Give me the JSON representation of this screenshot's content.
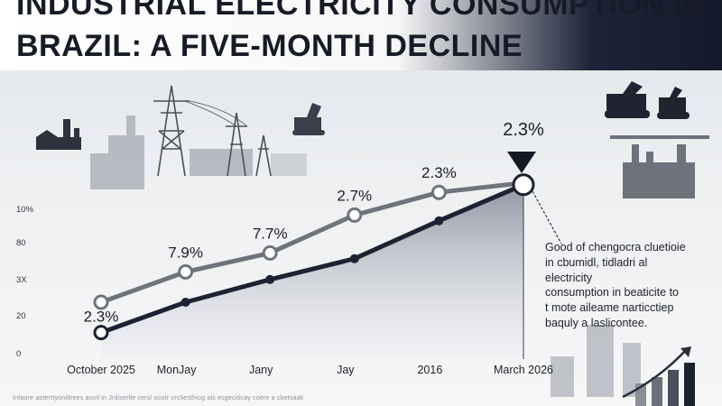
{
  "header": {
    "title_line1": "INDUSTRIAL ELECTRICITY CONSUMPTION IN",
    "title_line2": "BRAZIL: A FIVE-MONTH DECLINE"
  },
  "annotation": {
    "text": "Good of chengocra cluetioie\nin cbumidl, tidladri al electricity\nconsumption in beaticite to\nt mote aileame narticctiep\nbaquly a laslicontee."
  },
  "footer": {
    "text": "Infaore aoterttyoniltrees asoil in Jrdiserlle cersl oootr orcliesthiog als esgeciticay coere a cbetsaak"
  },
  "colors": {
    "light_series": "#6f737c",
    "dark_series": "#1c2231",
    "marker_fill": "#ffffff",
    "background": "#eef0f2"
  },
  "icons": [
    "power-pylon-icon",
    "factory-icon",
    "excavator-icon",
    "bulldozer-icon",
    "bar-chart-arrow-icon",
    "down-triangle-icon"
  ],
  "chart_data": {
    "type": "line",
    "title": "INDUSTRIAL ELECTRICITY CONSUMPTION IN BRAZIL: A FIVE-MONTH DECLINE",
    "categories": [
      "October 2025",
      "MonJay",
      "Jany",
      "Jay",
      "2016",
      "March 2026"
    ],
    "y_tick_labels": [
      "0",
      "20",
      "3X",
      "80",
      "10%"
    ],
    "ylim": [
      0,
      100
    ],
    "grid": false,
    "legend": "none",
    "series": [
      {
        "values": [
          30,
          46,
          56,
          76,
          88,
          93
        ]
      },
      {
        "values": [
          14,
          30,
          42,
          53,
          73,
          92
        ]
      }
    ],
    "data_labels": [
      {
        "category": "October 2025",
        "text": "2.3%"
      },
      {
        "category": "MonJay",
        "text": "7.9%"
      },
      {
        "category": "Jany",
        "text": "7.7%"
      },
      {
        "category": "Jay",
        "text": "2.7%"
      },
      {
        "category": "2016",
        "text": "2.3%"
      },
      {
        "category": "March 2026",
        "text": "2.3%"
      }
    ]
  }
}
